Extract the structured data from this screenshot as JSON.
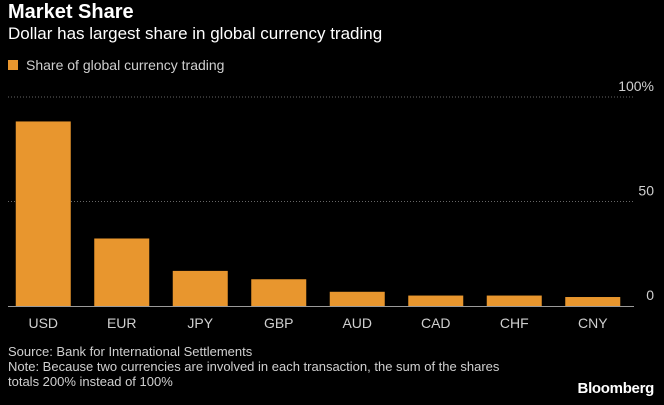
{
  "header": {
    "title": "Market Share",
    "subtitle": "Dollar has largest share in global currency trading"
  },
  "legend": {
    "label": "Share of global currency trading"
  },
  "colors": {
    "bar": "#E8962E",
    "background": "#000000",
    "gridline": "#666666",
    "axis": "#9a9a9a"
  },
  "chart_data": {
    "type": "bar",
    "title": "Market Share",
    "subtitle": "Dollar has largest share in global currency trading",
    "xlabel": "",
    "ylabel": "",
    "categories": [
      "USD",
      "EUR",
      "JPY",
      "GBP",
      "AUD",
      "CAD",
      "CHF",
      "CNY"
    ],
    "series": [
      {
        "name": "Share of global currency trading",
        "values": [
          88.3,
          32.3,
          16.8,
          12.8,
          6.8,
          5.0,
          5.0,
          4.3
        ]
      }
    ],
    "ylim": [
      0,
      100
    ],
    "yticks": [
      0,
      50,
      100
    ],
    "ytick_labels": [
      "0",
      "50",
      "100%"
    ],
    "grid": true,
    "legend_position": "top-left"
  },
  "footer": {
    "source": "Source: Bank for International Settlements",
    "note": "Note: Because two currencies are involved in each transaction, the sum of the shares totals 200% instead of 100%",
    "brand": "Bloomberg"
  }
}
